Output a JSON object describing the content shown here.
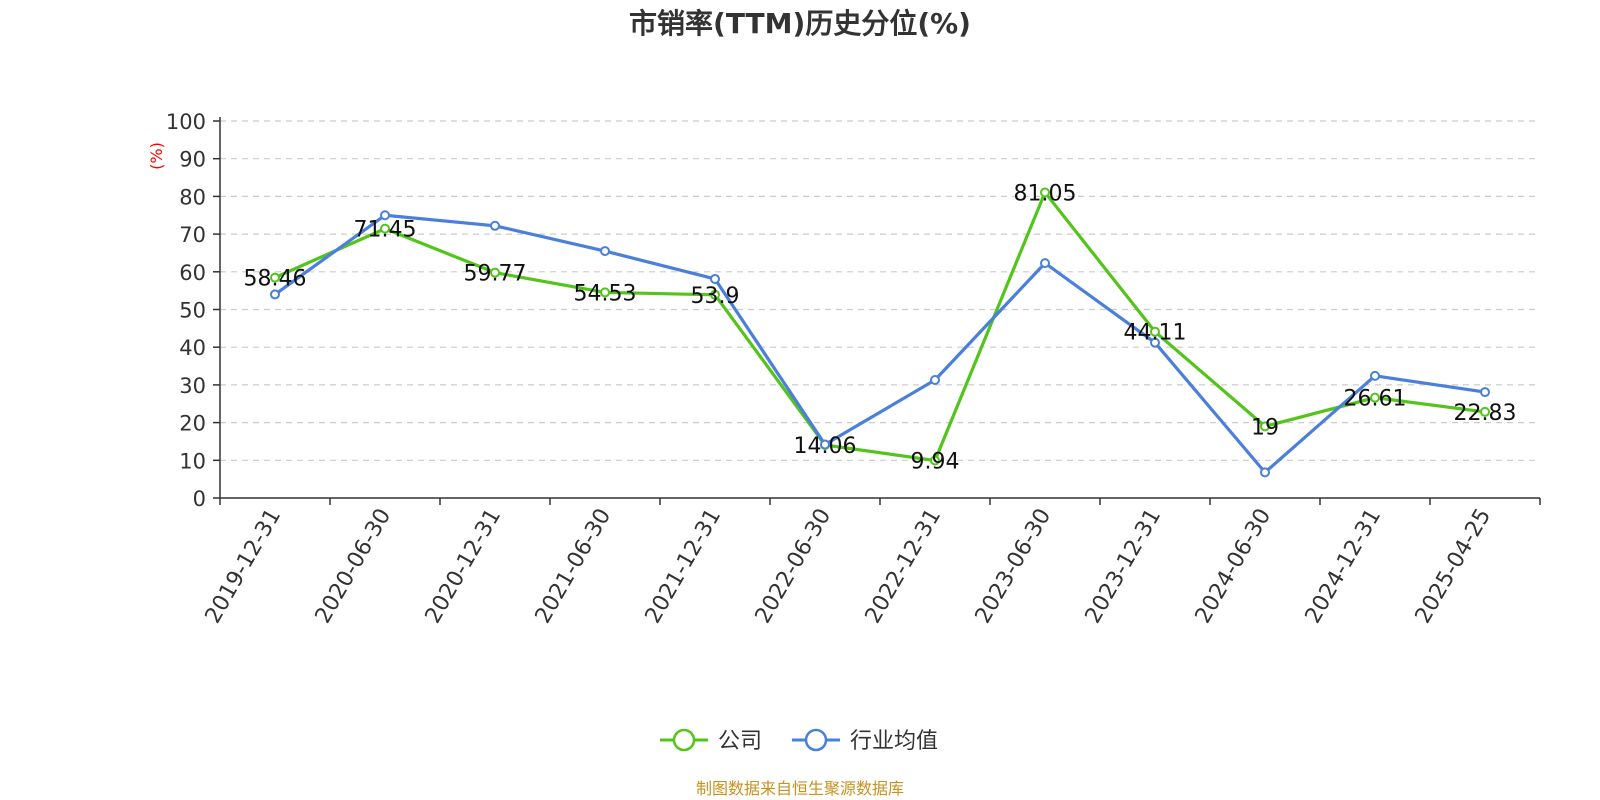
{
  "chart_data": {
    "type": "line",
    "title": "市销率(TTM)历史分位(%)",
    "ylabel": "(%)",
    "xlabel": "",
    "ylim": [
      0,
      100
    ],
    "yticks": [
      0,
      10,
      20,
      30,
      40,
      50,
      60,
      70,
      80,
      90,
      100
    ],
    "grid": true,
    "legend_position": "bottom-center",
    "categories": [
      "2019-12-31",
      "2020-06-30",
      "2020-12-31",
      "2021-06-30",
      "2021-12-31",
      "2022-06-30",
      "2022-12-31",
      "2023-06-30",
      "2023-12-31",
      "2024-06-30",
      "2024-12-31",
      "2025-04-25"
    ],
    "series": [
      {
        "name": "公司",
        "color": "#52c41a",
        "values": [
          58.46,
          71.45,
          59.77,
          54.53,
          53.9,
          14.06,
          9.94,
          81.05,
          44.11,
          19,
          26.61,
          22.83
        ],
        "labels": [
          "58.46",
          "71.45",
          "59.77",
          "54.53",
          "53.9",
          "14.06",
          "9.94",
          "81.05",
          "44.11",
          "19",
          "26.61",
          "22.83"
        ]
      },
      {
        "name": "行业均值",
        "color": "#4a7fdb",
        "values": [
          54,
          75,
          72.2,
          65.5,
          58.1,
          14.2,
          31.3,
          62.3,
          41.2,
          6.8,
          32.4,
          28.1
        ]
      }
    ]
  },
  "source_note": "制图数据来自恒生聚源数据库"
}
